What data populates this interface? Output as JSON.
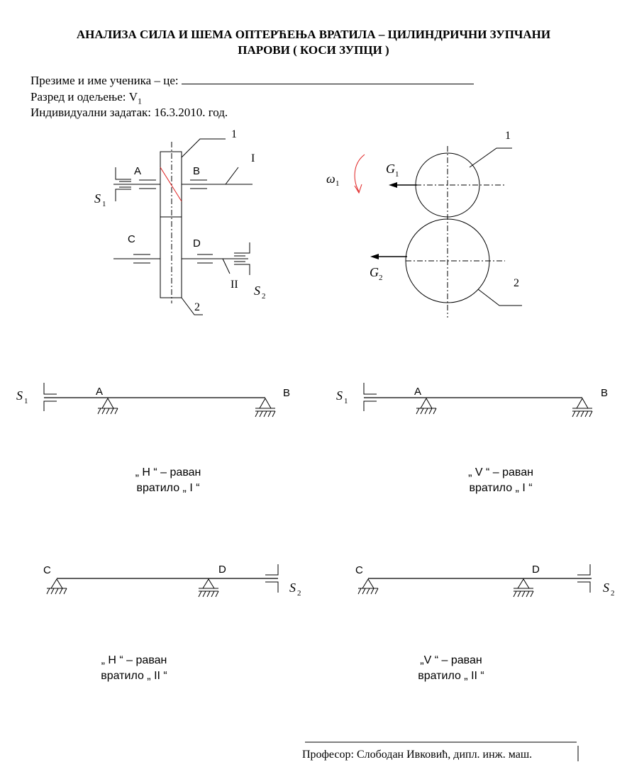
{
  "header": {
    "title_line1": "АНАЛИЗА СИЛА И ШЕМА ОПТЕРЋЕЊА ВРАТИЛА – ЦИЛИНДРИЧНИ ЗУПЧАНИ",
    "title_line2": "ПАРОВИ ( КОСИ ЗУПЦИ )"
  },
  "fields": {
    "student_label": "Презиме и име ученика – це:",
    "class_label": "Разред и одељење: V",
    "class_sub": "1",
    "task_label": "Индивидуални задатак: 16.3.2010. год."
  },
  "scheme": {
    "left": {
      "label_1": "1",
      "label_I": "I",
      "label_A": "A",
      "label_B": "B",
      "label_C": "C",
      "label_D": "D",
      "label_II": "II",
      "label_2": "2",
      "S1_main": "S",
      "S1_sub": "1",
      "S2_main": "S",
      "S2_sub": "2"
    },
    "right": {
      "label_1": "1",
      "label_2": "2",
      "omega_main": "ω",
      "omega_sub": "1",
      "G1_main": "G",
      "G1_sub": "1",
      "G2_main": "G",
      "G2_sub": "2",
      "accent_color": "#e02020"
    }
  },
  "beams": [
    {
      "support_left": "A",
      "support_right": "B",
      "S_main": "S",
      "S_sub": "1",
      "caption_line1": "„ H “ – раван",
      "caption_line2": "вратило „ I “"
    },
    {
      "support_left": "A",
      "support_right": "B",
      "S_main": "S",
      "S_sub": "1",
      "caption_line1": "„ V “ – раван",
      "caption_line2": "вратило „ I “"
    },
    {
      "support_left": "C",
      "support_right": "D",
      "S_main": "S",
      "S_sub": "2",
      "caption_line1": "„ H “ – раван",
      "caption_line2": "вратило „ II “"
    },
    {
      "support_left": "C",
      "support_right": "D",
      "S_main": "S",
      "S_sub": "2",
      "caption_line1": "„V “ – раван",
      "caption_line2": "вратило „ II “"
    }
  ],
  "footer": {
    "professor": "Професор: Слободан Ивковић, дипл. инж. маш."
  }
}
